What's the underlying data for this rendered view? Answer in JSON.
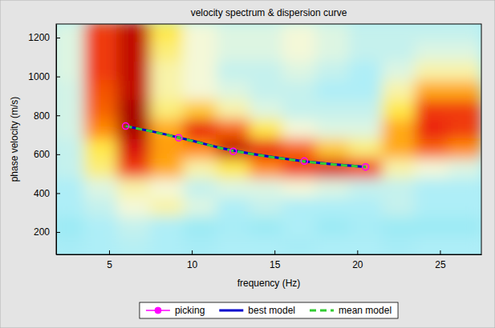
{
  "chart_data": {
    "type": "line",
    "title": "velocity spectrum & dispersion curve",
    "x_label": "frequency (Hz)",
    "y_label": "phase velocity (m/s)",
    "xlim": [
      1.8,
      27.5
    ],
    "ylim": [
      85,
      1270
    ],
    "xticks": [
      5,
      10,
      15,
      20,
      25
    ],
    "yticks": [
      200,
      400,
      600,
      800,
      1000,
      1200
    ],
    "legend": "bottom",
    "heatmap": {
      "x_edges": [
        1.5,
        3.5,
        5.5,
        7.5,
        9.5,
        11.5,
        13.5,
        15.5,
        17.5,
        19.5,
        21.5,
        23.5,
        25.5,
        27.5
      ],
      "y_edges": [
        80,
        180,
        280,
        380,
        480,
        580,
        680,
        780,
        880,
        980,
        1080,
        1180,
        1280
      ],
      "zlim": [
        0,
        1
      ],
      "z": [
        [
          0.28,
          0.3,
          0.32,
          0.3,
          0.28,
          0.3,
          0.3,
          0.28,
          0.3,
          0.3,
          0.28,
          0.3,
          0.3
        ],
        [
          0.25,
          0.3,
          0.35,
          0.3,
          0.25,
          0.28,
          0.25,
          0.3,
          0.25,
          0.28,
          0.25,
          0.25,
          0.25
        ],
        [
          0.3,
          0.35,
          0.45,
          0.5,
          0.4,
          0.3,
          0.35,
          0.3,
          0.3,
          0.3,
          0.35,
          0.3,
          0.3
        ],
        [
          0.3,
          0.4,
          0.5,
          0.45,
          0.35,
          0.4,
          0.4,
          0.45,
          0.4,
          0.35,
          0.35,
          0.3,
          0.3
        ],
        [
          0.35,
          0.55,
          0.85,
          0.7,
          0.5,
          0.6,
          0.75,
          0.85,
          0.92,
          0.85,
          0.5,
          0.45,
          0.4
        ],
        [
          0.35,
          0.6,
          0.92,
          0.72,
          0.75,
          0.95,
          0.9,
          0.8,
          0.65,
          0.55,
          0.7,
          0.8,
          0.75
        ],
        [
          0.38,
          0.75,
          0.98,
          0.7,
          0.9,
          0.8,
          0.6,
          0.45,
          0.4,
          0.4,
          0.7,
          0.88,
          0.85
        ],
        [
          0.38,
          0.8,
          0.98,
          0.55,
          0.65,
          0.5,
          0.4,
          0.35,
          0.35,
          0.35,
          0.6,
          0.85,
          0.85
        ],
        [
          0.38,
          0.82,
          0.95,
          0.5,
          0.45,
          0.4,
          0.35,
          0.35,
          0.3,
          0.3,
          0.5,
          0.7,
          0.7
        ],
        [
          0.4,
          0.85,
          0.95,
          0.5,
          0.45,
          0.35,
          0.35,
          0.4,
          0.35,
          0.3,
          0.4,
          0.5,
          0.5
        ],
        [
          0.4,
          0.85,
          0.95,
          0.55,
          0.45,
          0.4,
          0.4,
          0.45,
          0.4,
          0.35,
          0.35,
          0.4,
          0.4
        ],
        [
          0.4,
          0.85,
          0.95,
          0.6,
          0.45,
          0.4,
          0.4,
          0.45,
          0.4,
          0.35,
          0.35,
          0.35,
          0.35
        ]
      ]
    },
    "series": [
      {
        "name": "picking",
        "type": "line",
        "marker": "circle",
        "line_style": "solid",
        "color": "#ff00ff",
        "x": [
          6,
          9.2,
          12.5,
          16.8,
          20.5
        ],
        "values": [
          745,
          685,
          615,
          565,
          535
        ]
      },
      {
        "name": "best model",
        "type": "line",
        "line_style": "solid",
        "color": "#0000cc",
        "x": [
          6,
          8,
          10,
          12,
          14,
          16,
          18,
          20.5
        ],
        "values": [
          745,
          710,
          670,
          628,
          597,
          573,
          553,
          535
        ]
      },
      {
        "name": "mean model",
        "type": "line",
        "line_style": "dashed",
        "color": "#33cc33",
        "x": [
          6,
          8,
          10,
          12,
          14,
          16,
          18,
          20.5
        ],
        "values": [
          745,
          709,
          669,
          627,
          596,
          572,
          552,
          535
        ]
      }
    ]
  }
}
